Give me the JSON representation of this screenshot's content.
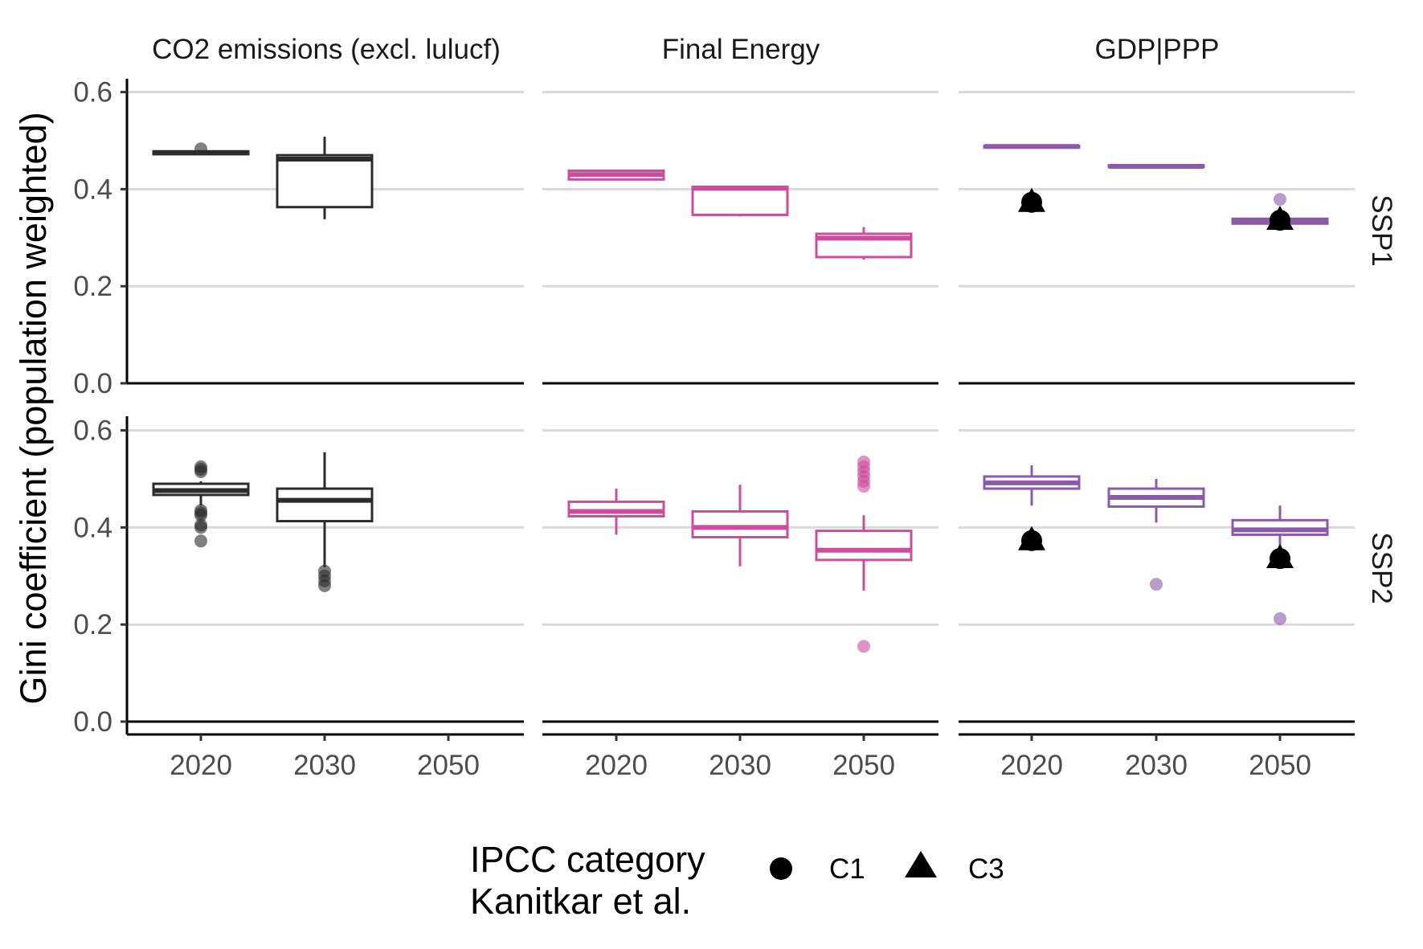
{
  "chart_data": {
    "type": "boxplot",
    "ylabel": "Gini coefficient (population weighted)",
    "ylim": [
      0,
      0.62
    ],
    "yticks": [
      0.0,
      0.2,
      0.4,
      0.6
    ],
    "ytick_labels": [
      "0.0",
      "0.2",
      "0.4",
      "0.6"
    ],
    "xcategories": [
      "2020",
      "2030",
      "2050"
    ],
    "facet_columns": [
      "CO2 emissions (excl. lulucf)",
      "Final Energy",
      "GDP|PPP"
    ],
    "facet_rows": [
      "SSP1",
      "SSP2"
    ],
    "colors": {
      "CO2 emissions (excl. lulucf)": "#2b2b2b",
      "Final Energy": "#cc4c9e",
      "GDP|PPP": "#8c5aa8",
      "reference": "#000000",
      "grid": "#d9d9d9"
    },
    "legend": {
      "title_lines": [
        "IPCC category",
        "Kanitkar et al."
      ],
      "items": [
        {
          "shape": "circle",
          "label": "C1"
        },
        {
          "shape": "triangle",
          "label": "C3"
        }
      ]
    },
    "panels": [
      {
        "row": "SSP1",
        "col": "CO2 emissions (excl. lulucf)",
        "boxes": [
          {
            "x": "2020",
            "q1": 0.472,
            "median": 0.475,
            "q3": 0.478,
            "wlo": 0.472,
            "whi": 0.48,
            "outliers": [
              0.483
            ]
          },
          {
            "x": "2030",
            "q1": 0.363,
            "median": 0.462,
            "q3": 0.47,
            "wlo": 0.338,
            "whi": 0.508,
            "outliers": []
          }
        ],
        "reference": []
      },
      {
        "row": "SSP1",
        "col": "Final Energy",
        "boxes": [
          {
            "x": "2020",
            "q1": 0.42,
            "median": 0.43,
            "q3": 0.438,
            "wlo": 0.42,
            "whi": 0.44,
            "outliers": []
          },
          {
            "x": "2030",
            "q1": 0.347,
            "median": 0.402,
            "q3": 0.405,
            "wlo": 0.344,
            "whi": 0.405,
            "outliers": []
          },
          {
            "x": "2050",
            "q1": 0.26,
            "median": 0.299,
            "q3": 0.308,
            "wlo": 0.255,
            "whi": 0.322,
            "outliers": []
          }
        ],
        "reference": []
      },
      {
        "row": "SSP1",
        "col": "GDP|PPP",
        "boxes": [
          {
            "x": "2020",
            "q1": 0.487,
            "median": 0.488,
            "q3": 0.489,
            "wlo": 0.487,
            "whi": 0.489,
            "outliers": []
          },
          {
            "x": "2030",
            "q1": 0.446,
            "median": 0.447,
            "q3": 0.449,
            "wlo": 0.446,
            "whi": 0.451,
            "outliers": []
          },
          {
            "x": "2050",
            "q1": 0.329,
            "median": 0.333,
            "q3": 0.339,
            "wlo": 0.326,
            "whi": 0.345,
            "outliers": [
              0.379
            ]
          }
        ],
        "reference": [
          {
            "x": "2020",
            "category": "C1",
            "value": 0.373
          },
          {
            "x": "2020",
            "category": "C3",
            "value": 0.373
          },
          {
            "x": "2050",
            "category": "C1",
            "value": 0.336
          },
          {
            "x": "2050",
            "category": "C3",
            "value": 0.336
          }
        ]
      },
      {
        "row": "SSP2",
        "col": "CO2 emissions (excl. lulucf)",
        "boxes": [
          {
            "x": "2020",
            "q1": 0.467,
            "median": 0.476,
            "q3": 0.49,
            "wlo": 0.445,
            "whi": 0.495,
            "outliers": [
              0.372,
              0.4,
              0.405,
              0.425,
              0.43,
              0.435,
              0.515,
              0.52,
              0.525
            ]
          },
          {
            "x": "2030",
            "q1": 0.413,
            "median": 0.456,
            "q3": 0.48,
            "wlo": 0.318,
            "whi": 0.555,
            "outliers": [
              0.28,
              0.29,
              0.3,
              0.31
            ]
          }
        ],
        "reference": []
      },
      {
        "row": "SSP2",
        "col": "Final Energy",
        "boxes": [
          {
            "x": "2020",
            "q1": 0.423,
            "median": 0.433,
            "q3": 0.453,
            "wlo": 0.385,
            "whi": 0.48,
            "outliers": []
          },
          {
            "x": "2030",
            "q1": 0.38,
            "median": 0.4,
            "q3": 0.433,
            "wlo": 0.32,
            "whi": 0.488,
            "outliers": []
          },
          {
            "x": "2050",
            "q1": 0.333,
            "median": 0.353,
            "q3": 0.393,
            "wlo": 0.27,
            "whi": 0.425,
            "outliers": [
              0.155,
              0.485,
              0.495,
              0.505,
              0.515,
              0.525,
              0.535
            ]
          }
        ],
        "reference": []
      },
      {
        "row": "SSP2",
        "col": "GDP|PPP",
        "boxes": [
          {
            "x": "2020",
            "q1": 0.48,
            "median": 0.492,
            "q3": 0.505,
            "wlo": 0.445,
            "whi": 0.528,
            "outliers": []
          },
          {
            "x": "2030",
            "q1": 0.443,
            "median": 0.462,
            "q3": 0.48,
            "wlo": 0.41,
            "whi": 0.5,
            "outliers": [
              0.283
            ]
          },
          {
            "x": "2050",
            "q1": 0.385,
            "median": 0.395,
            "q3": 0.415,
            "wlo": 0.35,
            "whi": 0.445,
            "outliers": [
              0.212
            ]
          }
        ],
        "reference": [
          {
            "x": "2020",
            "category": "C1",
            "value": 0.373
          },
          {
            "x": "2020",
            "category": "C3",
            "value": 0.373
          },
          {
            "x": "2050",
            "category": "C1",
            "value": 0.336
          },
          {
            "x": "2050",
            "category": "C3",
            "value": 0.336
          }
        ]
      }
    ]
  }
}
